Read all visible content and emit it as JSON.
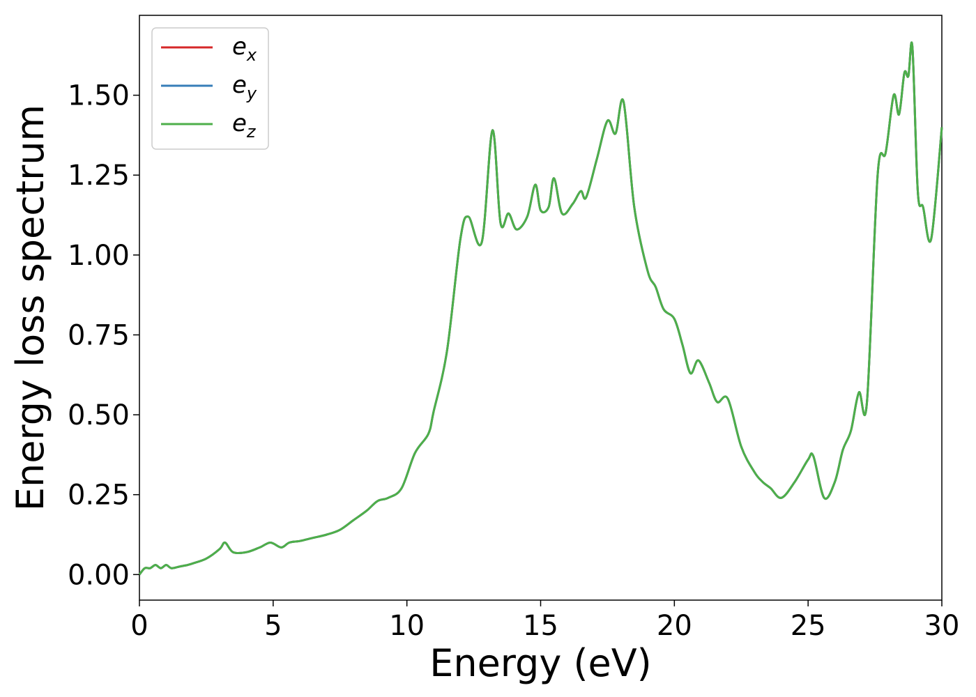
{
  "chart_data": {
    "type": "line",
    "xlabel": "Energy (eV)",
    "ylabel": "Energy loss spectrum",
    "xlim": [
      0,
      30
    ],
    "ylim": [
      -0.08,
      1.75
    ],
    "xticks": [
      0,
      5,
      10,
      15,
      20,
      25,
      30
    ],
    "xtick_labels": [
      "0",
      "5",
      "10",
      "15",
      "20",
      "25",
      "30"
    ],
    "yticks": [
      0,
      0.25,
      0.5,
      0.75,
      1.0,
      1.25,
      1.5
    ],
    "ytick_labels": [
      "0.00",
      "0.25",
      "0.50",
      "0.75",
      "1.00",
      "1.25",
      "1.50"
    ],
    "grid": false,
    "legend_position": "top-left",
    "series": [
      {
        "name": "e",
        "subscript": "x",
        "color": "#d62728"
      },
      {
        "name": "e",
        "subscript": "y",
        "color": "#377eb8"
      },
      {
        "name": "e",
        "subscript": "z",
        "color": "#4daf4a"
      }
    ],
    "x": [
      0,
      0.2,
      0.4,
      0.6,
      0.8,
      1.0,
      1.2,
      1.5,
      1.8,
      2.0,
      2.5,
      3.0,
      3.2,
      3.5,
      4.0,
      4.5,
      4.9,
      5.3,
      5.6,
      6.0,
      6.5,
      7.0,
      7.5,
      8.0,
      8.5,
      8.9,
      9.3,
      9.8,
      10.3,
      10.8,
      11.0,
      11.5,
      12.0,
      12.3,
      12.8,
      13.2,
      13.5,
      13.8,
      14.1,
      14.5,
      14.8,
      15.0,
      15.3,
      15.5,
      15.8,
      16.2,
      16.5,
      16.7,
      17.1,
      17.5,
      17.8,
      18.1,
      18.5,
      19.0,
      19.3,
      19.6,
      20.0,
      20.3,
      20.6,
      20.9,
      21.3,
      21.6,
      22.0,
      22.5,
      23.0,
      23.3,
      23.6,
      24.0,
      24.5,
      25.0,
      25.2,
      25.6,
      26.0,
      26.3,
      26.6,
      26.9,
      27.2,
      27.6,
      27.9,
      28.2,
      28.4,
      28.6,
      28.75,
      28.9,
      29.1,
      29.3,
      29.6,
      30.0
    ],
    "y": [
      0.0,
      0.02,
      0.02,
      0.03,
      0.02,
      0.03,
      0.02,
      0.025,
      0.03,
      0.035,
      0.05,
      0.08,
      0.1,
      0.07,
      0.07,
      0.085,
      0.1,
      0.085,
      0.1,
      0.105,
      0.115,
      0.125,
      0.14,
      0.17,
      0.2,
      0.23,
      0.24,
      0.27,
      0.38,
      0.44,
      0.51,
      0.7,
      1.05,
      1.12,
      1.04,
      1.39,
      1.1,
      1.13,
      1.08,
      1.12,
      1.22,
      1.14,
      1.15,
      1.24,
      1.13,
      1.16,
      1.2,
      1.18,
      1.3,
      1.42,
      1.38,
      1.48,
      1.15,
      0.95,
      0.9,
      0.83,
      0.8,
      0.72,
      0.63,
      0.67,
      0.6,
      0.54,
      0.55,
      0.4,
      0.32,
      0.29,
      0.27,
      0.24,
      0.29,
      0.36,
      0.37,
      0.24,
      0.29,
      0.39,
      0.45,
      0.57,
      0.54,
      1.25,
      1.32,
      1.5,
      1.44,
      1.57,
      1.56,
      1.65,
      1.2,
      1.15,
      1.05,
      1.4
    ]
  }
}
